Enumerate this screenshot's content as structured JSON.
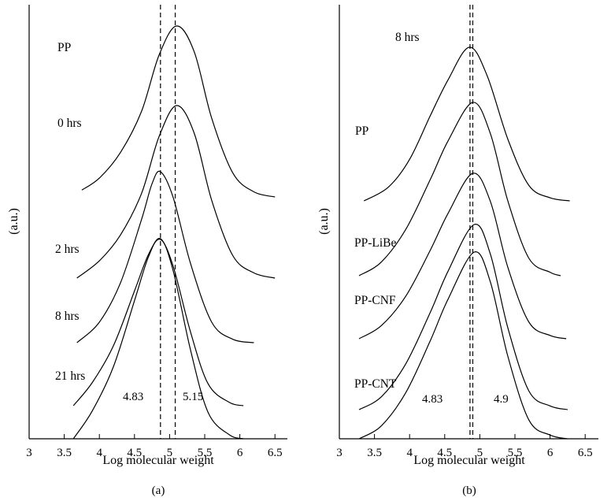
{
  "chart_data": [
    {
      "type": "line",
      "panel_label": "(a)",
      "xlabel": "Log molecular weight",
      "ylabel": "(a.u.)",
      "xlim": [
        3,
        6.5
      ],
      "x_ticks": [
        "3",
        "3.5",
        "4",
        "4.5",
        "5",
        "5.5",
        "6",
        "6.5"
      ],
      "grid": false,
      "reference_lines": [
        {
          "x": 4.87,
          "label": "4.83"
        },
        {
          "x": 5.08,
          "label": "5.15"
        }
      ],
      "series": [
        {
          "name": "PP",
          "x": [
            3.75,
            4.0,
            4.3,
            4.6,
            4.85,
            5.1,
            5.35,
            5.6,
            5.9,
            6.2,
            6.5
          ],
          "y": [
            0.04,
            0.11,
            0.26,
            0.5,
            0.83,
            1.0,
            0.85,
            0.46,
            0.14,
            0.03,
            0.0
          ]
        },
        {
          "name": "0 hrs",
          "x": [
            3.68,
            4.0,
            4.3,
            4.6,
            4.85,
            5.1,
            5.35,
            5.6,
            5.9,
            6.2,
            6.5
          ],
          "y": [
            0.0,
            0.1,
            0.25,
            0.49,
            0.82,
            1.0,
            0.84,
            0.45,
            0.13,
            0.03,
            0.0
          ]
        },
        {
          "name": "2 hrs",
          "x": [
            3.68,
            4.0,
            4.3,
            4.6,
            4.75,
            4.87,
            5.05,
            5.3,
            5.6,
            5.9,
            6.2
          ],
          "y": [
            0.0,
            0.12,
            0.35,
            0.72,
            0.93,
            1.0,
            0.85,
            0.46,
            0.12,
            0.02,
            0.0
          ]
        },
        {
          "name": "8 hrs",
          "x": [
            3.63,
            3.9,
            4.2,
            4.5,
            4.7,
            4.87,
            5.05,
            5.3,
            5.55,
            5.85,
            6.05
          ],
          "y": [
            0.0,
            0.14,
            0.36,
            0.69,
            0.91,
            1.0,
            0.84,
            0.44,
            0.13,
            0.02,
            0.0
          ]
        },
        {
          "name": "21 hrs",
          "x": [
            3.63,
            3.9,
            4.2,
            4.5,
            4.7,
            4.87,
            5.05,
            5.3,
            5.55,
            5.85,
            6.05
          ],
          "y": [
            0.0,
            0.14,
            0.36,
            0.69,
            0.91,
            1.0,
            0.84,
            0.44,
            0.13,
            0.02,
            0.0
          ]
        }
      ]
    },
    {
      "type": "line",
      "panel_label": "(b)",
      "xlabel": "Log molecular weight",
      "ylabel": "(a.u.)",
      "xlim": [
        3,
        6.5
      ],
      "x_ticks": [
        "3",
        "3.5",
        "4",
        "4.5",
        "5",
        "5.5",
        "6",
        "6.5"
      ],
      "grid": false,
      "reference_lines": [
        {
          "x": 4.86,
          "label": "4.83"
        },
        {
          "x": 4.9,
          "label": "4.9"
        }
      ],
      "series": [
        {
          "name": "8 hrs",
          "x": [
            3.35,
            3.7,
            4.0,
            4.3,
            4.55,
            4.85,
            5.1,
            5.4,
            5.7,
            6.0,
            6.28
          ],
          "y": [
            0.0,
            0.09,
            0.27,
            0.56,
            0.79,
            1.0,
            0.82,
            0.4,
            0.1,
            0.02,
            0.0
          ]
        },
        {
          "name": "PP",
          "x": [
            3.28,
            3.6,
            3.95,
            4.3,
            4.55,
            4.9,
            5.15,
            5.4,
            5.7,
            6.0,
            6.15
          ],
          "y": [
            0.0,
            0.08,
            0.27,
            0.56,
            0.78,
            1.0,
            0.82,
            0.43,
            0.1,
            0.02,
            0.0
          ]
        },
        {
          "name": "PP-LiBe",
          "x": [
            3.28,
            3.6,
            3.95,
            4.3,
            4.55,
            4.9,
            5.15,
            5.4,
            5.7,
            6.0,
            6.23
          ],
          "y": [
            0.0,
            0.08,
            0.26,
            0.54,
            0.76,
            1.0,
            0.83,
            0.43,
            0.1,
            0.02,
            0.0
          ]
        },
        {
          "name": "PP-CNF",
          "x": [
            3.28,
            3.6,
            3.95,
            4.3,
            4.55,
            4.92,
            5.15,
            5.4,
            5.7,
            6.0,
            6.25
          ],
          "y": [
            0.0,
            0.07,
            0.25,
            0.53,
            0.75,
            1.0,
            0.84,
            0.44,
            0.1,
            0.02,
            0.0
          ]
        },
        {
          "name": "PP-CNT",
          "x": [
            3.28,
            3.6,
            3.95,
            4.3,
            4.55,
            4.92,
            5.15,
            5.4,
            5.7,
            6.0,
            6.25
          ],
          "y": [
            0.0,
            0.07,
            0.25,
            0.53,
            0.75,
            1.0,
            0.84,
            0.44,
            0.1,
            0.02,
            0.0
          ]
        }
      ]
    }
  ]
}
